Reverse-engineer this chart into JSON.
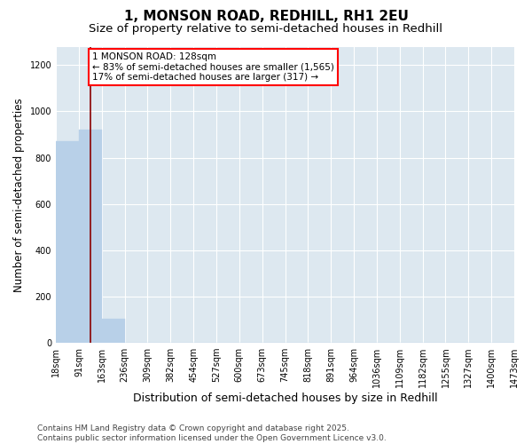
{
  "title": "1, MONSON ROAD, REDHILL, RH1 2EU",
  "subtitle": "Size of property relative to semi-detached houses in Redhill",
  "xlabel": "Distribution of semi-detached houses by size in Redhill",
  "ylabel": "Number of semi-detached properties",
  "bar_values": [
    870,
    920,
    105,
    0,
    0,
    0,
    0,
    0,
    0,
    0,
    0,
    0,
    0,
    0,
    0,
    0,
    0,
    0,
    0,
    0
  ],
  "bin_labels": [
    "18sqm",
    "91sqm",
    "163sqm",
    "236sqm",
    "309sqm",
    "382sqm",
    "454sqm",
    "527sqm",
    "600sqm",
    "673sqm",
    "745sqm",
    "818sqm",
    "891sqm",
    "964sqm",
    "1036sqm",
    "1109sqm",
    "1182sqm",
    "1255sqm",
    "1327sqm",
    "1400sqm",
    "1473sqm"
  ],
  "bar_color": "#b8d0e8",
  "bar_edgecolor": "#b8d0e8",
  "vline_x": 1.514,
  "vline_color": "#8b0000",
  "annotation_line1": "1 MONSON ROAD: 128sqm",
  "annotation_line2": "← 83% of semi-detached houses are smaller (1,565)",
  "annotation_line3": "17% of semi-detached houses are larger (317) →",
  "ylim": [
    0,
    1280
  ],
  "yticks": [
    0,
    200,
    400,
    600,
    800,
    1000,
    1200
  ],
  "background_color": "#dde8f0",
  "footer_text": "Contains HM Land Registry data © Crown copyright and database right 2025.\nContains public sector information licensed under the Open Government Licence v3.0.",
  "title_fontsize": 11,
  "subtitle_fontsize": 9.5,
  "axis_label_fontsize": 8.5,
  "tick_fontsize": 7,
  "annotation_fontsize": 7.5,
  "footer_fontsize": 6.5
}
